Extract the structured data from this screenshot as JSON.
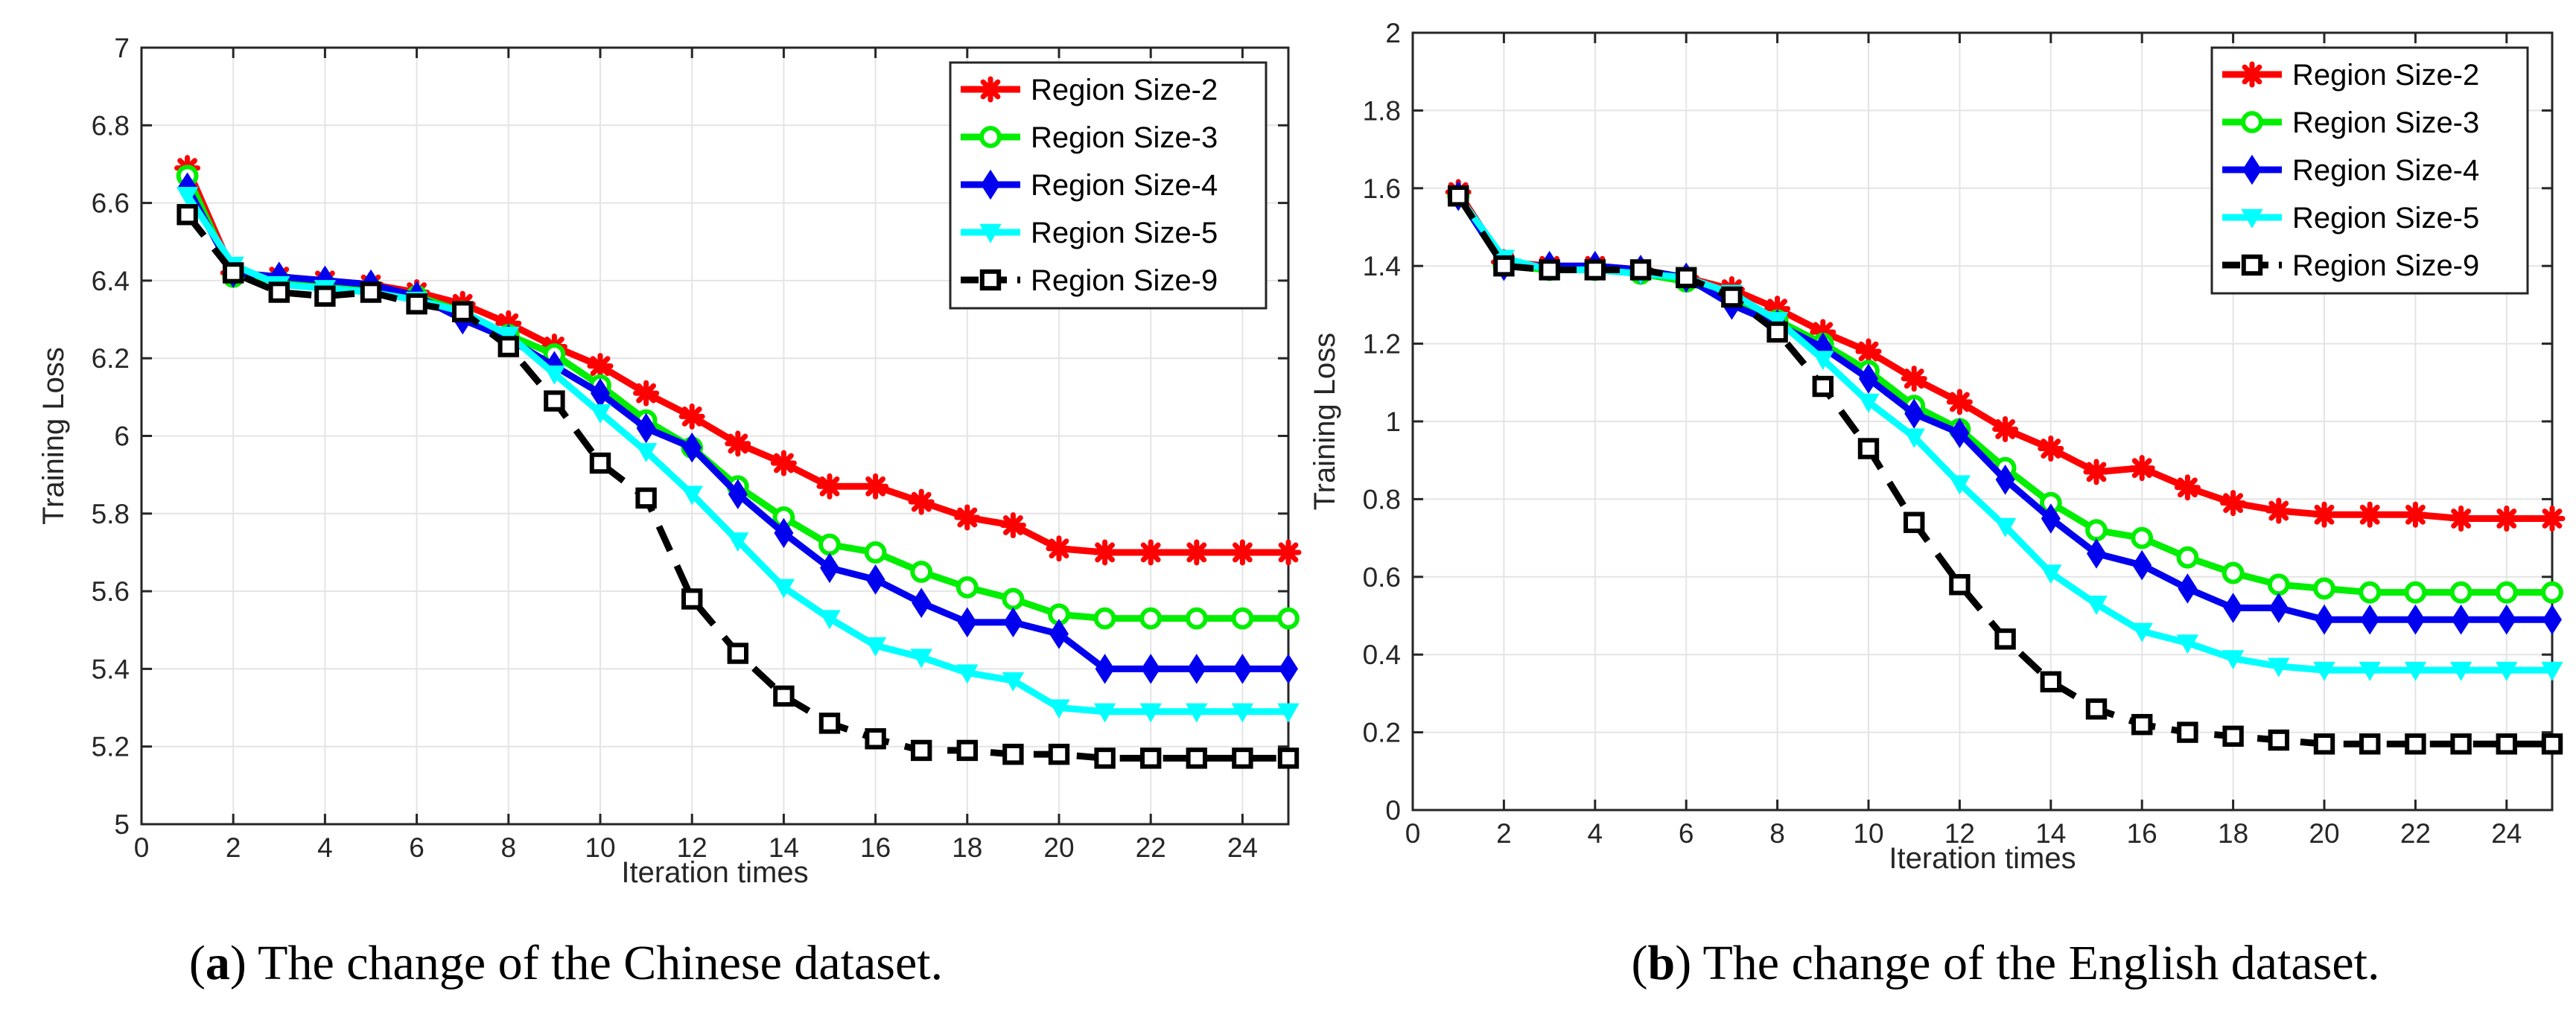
{
  "captions": [
    {
      "letter": "a",
      "open": "(",
      "close": ")",
      "text": " The change of the Chinese dataset."
    },
    {
      "letter": "b",
      "open": "(",
      "close": ")",
      "text": " The change of the English dataset."
    }
  ],
  "styles": [
    {
      "color": "#ff0000",
      "marker": "star",
      "dash": ""
    },
    {
      "color": "#00ee00",
      "marker": "circle",
      "dash": ""
    },
    {
      "color": "#0000ee",
      "marker": "diamond",
      "dash": ""
    },
    {
      "color": "#00ffff",
      "marker": "triangle-down",
      "dash": ""
    },
    {
      "color": "#000000",
      "marker": "square",
      "dash": "36,22"
    }
  ],
  "chart_data": [
    {
      "type": "line",
      "title": "",
      "xlabel": "Iteration times",
      "ylabel": "Training Loss",
      "xlim": [
        0,
        25
      ],
      "ylim": [
        5,
        7
      ],
      "xticks": [
        0,
        2,
        4,
        6,
        8,
        10,
        12,
        14,
        16,
        18,
        20,
        22,
        24
      ],
      "yticks": [
        5,
        5.2,
        5.4,
        5.6,
        5.8,
        6,
        6.2,
        6.4,
        6.6,
        6.8,
        7
      ],
      "ytick_labels": [
        "5",
        "5.2",
        "5.4",
        "5.6",
        "5.8",
        "6",
        "6.2",
        "6.4",
        "6.6",
        "6.8",
        "7"
      ],
      "grid": true,
      "legend_position": "top-right",
      "x": [
        1,
        2,
        3,
        4,
        5,
        6,
        7,
        8,
        9,
        10,
        11,
        12,
        13,
        14,
        15,
        16,
        17,
        18,
        19,
        20,
        21,
        22,
        23,
        24,
        25
      ],
      "series": [
        {
          "name": "Region Size-2",
          "values": [
            6.69,
            6.42,
            6.41,
            6.4,
            6.39,
            6.37,
            6.34,
            6.29,
            6.23,
            6.18,
            6.11,
            6.05,
            5.98,
            5.93,
            5.87,
            5.87,
            5.83,
            5.79,
            5.77,
            5.71,
            5.7,
            5.7,
            5.7,
            5.7,
            5.7
          ]
        },
        {
          "name": "Region Size-3",
          "values": [
            6.67,
            6.41,
            6.4,
            6.39,
            6.38,
            6.36,
            6.32,
            6.26,
            6.21,
            6.13,
            6.04,
            5.97,
            5.87,
            5.79,
            5.72,
            5.7,
            5.65,
            5.61,
            5.58,
            5.54,
            5.53,
            5.53,
            5.53,
            5.53,
            5.53
          ]
        },
        {
          "name": "Region Size-4",
          "values": [
            6.64,
            6.42,
            6.41,
            6.4,
            6.39,
            6.36,
            6.3,
            6.25,
            6.18,
            6.11,
            6.02,
            5.97,
            5.85,
            5.75,
            5.66,
            5.63,
            5.57,
            5.52,
            5.52,
            5.49,
            5.4,
            5.4,
            5.4,
            5.4,
            5.4
          ]
        },
        {
          "name": "Region Size-5",
          "values": [
            6.62,
            6.44,
            6.39,
            6.38,
            6.37,
            6.35,
            6.32,
            6.26,
            6.16,
            6.06,
            5.96,
            5.85,
            5.73,
            5.61,
            5.53,
            5.46,
            5.43,
            5.39,
            5.37,
            5.3,
            5.29,
            5.29,
            5.29,
            5.29,
            5.29
          ]
        },
        {
          "name": "Region Size-9",
          "values": [
            6.57,
            6.42,
            6.37,
            6.36,
            6.37,
            6.34,
            6.32,
            6.23,
            6.09,
            5.93,
            5.84,
            5.58,
            5.44,
            5.33,
            5.26,
            5.22,
            5.19,
            5.19,
            5.18,
            5.18,
            5.17,
            5.17,
            5.17,
            5.17,
            5.17
          ]
        }
      ]
    },
    {
      "type": "line",
      "title": "",
      "xlabel": "Iteration times",
      "ylabel": "Training Loss",
      "xlim": [
        0,
        25
      ],
      "ylim": [
        0,
        2
      ],
      "xticks": [
        0,
        2,
        4,
        6,
        8,
        10,
        12,
        14,
        16,
        18,
        20,
        22,
        24
      ],
      "yticks": [
        0,
        0.2,
        0.4,
        0.6,
        0.8,
        1,
        1.2,
        1.4,
        1.6,
        1.8,
        2
      ],
      "ytick_labels": [
        "0",
        "0.2",
        "0.4",
        "0.6",
        "0.8",
        "1",
        "1.2",
        "1.4",
        "1.6",
        "1.8",
        "2"
      ],
      "grid": true,
      "legend_position": "top-right",
      "x": [
        1,
        2,
        3,
        4,
        5,
        6,
        7,
        8,
        9,
        10,
        11,
        12,
        13,
        14,
        15,
        16,
        17,
        18,
        19,
        20,
        21,
        22,
        23,
        24,
        25
      ],
      "series": [
        {
          "name": "Region Size-2",
          "values": [
            1.59,
            1.41,
            1.4,
            1.4,
            1.39,
            1.37,
            1.34,
            1.29,
            1.23,
            1.18,
            1.11,
            1.05,
            0.98,
            0.93,
            0.87,
            0.88,
            0.83,
            0.79,
            0.77,
            0.76,
            0.76,
            0.76,
            0.75,
            0.75,
            0.75
          ]
        },
        {
          "name": "Region Size-3",
          "values": [
            1.58,
            1.4,
            1.39,
            1.39,
            1.38,
            1.36,
            1.32,
            1.26,
            1.2,
            1.13,
            1.04,
            0.98,
            0.88,
            0.79,
            0.72,
            0.7,
            0.65,
            0.61,
            0.58,
            0.57,
            0.56,
            0.56,
            0.56,
            0.56,
            0.56
          ]
        },
        {
          "name": "Region Size-4",
          "values": [
            1.58,
            1.4,
            1.4,
            1.4,
            1.39,
            1.37,
            1.3,
            1.25,
            1.19,
            1.11,
            1.02,
            0.97,
            0.85,
            0.75,
            0.66,
            0.63,
            0.57,
            0.52,
            0.52,
            0.49,
            0.49,
            0.49,
            0.49,
            0.49,
            0.49
          ]
        },
        {
          "name": "Region Size-5",
          "values": [
            1.58,
            1.42,
            1.39,
            1.39,
            1.38,
            1.37,
            1.33,
            1.26,
            1.16,
            1.05,
            0.96,
            0.84,
            0.73,
            0.61,
            0.53,
            0.46,
            0.43,
            0.39,
            0.37,
            0.36,
            0.36,
            0.36,
            0.36,
            0.36,
            0.36
          ]
        },
        {
          "name": "Region Size-9",
          "values": [
            1.58,
            1.4,
            1.39,
            1.39,
            1.39,
            1.37,
            1.32,
            1.23,
            1.09,
            0.93,
            0.74,
            0.58,
            0.44,
            0.33,
            0.26,
            0.22,
            0.2,
            0.19,
            0.18,
            0.17,
            0.17,
            0.17,
            0.17,
            0.17,
            0.17
          ]
        }
      ]
    }
  ]
}
